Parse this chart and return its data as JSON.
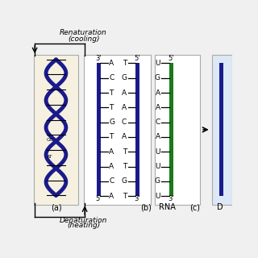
{
  "bg_color": "#f0f0f0",
  "panel_bg": "#ffffff",
  "panel_a_bg": "#f5f0e0",
  "panel_d_bg": "#dce8f5",
  "blue_color": "#1a1a8c",
  "green_color": "#1a7a1a",
  "panel_a_label": "(a)",
  "panel_b_label": "(b)",
  "panel_c_label": "(c)",
  "panel_d_label": "D",
  "rna_label": "RNA",
  "left_strand_labels": [
    "A",
    "C",
    "T",
    "T",
    "G",
    "T",
    "A",
    "A",
    "C",
    "A"
  ],
  "right_strand_labels": [
    "T",
    "G",
    "A",
    "A",
    "C",
    "A",
    "T",
    "T",
    "G",
    "T"
  ],
  "rna_strand_labels": [
    "U",
    "G",
    "A",
    "A",
    "C",
    "A",
    "U",
    "U",
    "G",
    "U"
  ],
  "left_top_label": "3'",
  "left_bot_label": "5'",
  "right_top_label": "5'",
  "right_bot_label": "3'",
  "rna_top_label": "5'",
  "rna_bot_label": "3'"
}
